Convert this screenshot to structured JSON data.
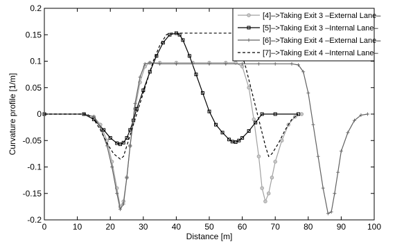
{
  "chart_data": {
    "type": "line",
    "title": "",
    "xlabel": "Distance [m]",
    "ylabel": "Curvature profile [1/m]",
    "xlim": [
      0,
      100
    ],
    "ylim": [
      -0.2,
      0.2
    ],
    "xticks": [
      0,
      10,
      20,
      30,
      40,
      50,
      60,
      70,
      80,
      90,
      100
    ],
    "yticks": [
      -0.2,
      -0.15,
      -0.1,
      -0.05,
      0,
      0.05,
      0.1,
      0.15,
      0.2
    ],
    "xtick_labels": [
      "0",
      "10",
      "20",
      "30",
      "40",
      "50",
      "60",
      "70",
      "80",
      "90",
      "100"
    ],
    "ytick_labels": [
      "-0.2",
      "-0.15",
      "-0.1",
      "-0.05",
      "0",
      "0.05",
      "0.1",
      "0.15",
      "0.2"
    ],
    "grid": false,
    "legend_position": "top-right",
    "series": [
      {
        "name": "[4]–>Taking Exit 3 –External Lane–",
        "color": "#a0a0a0",
        "line_style": "solid",
        "marker": "circle",
        "x": [
          0,
          12,
          15,
          17,
          19,
          20.5,
          22,
          23,
          24,
          25,
          26,
          27.5,
          29,
          30.5,
          32,
          35,
          40,
          45,
          50,
          55,
          58,
          60,
          62,
          63.5,
          65,
          66,
          67,
          68,
          69,
          70,
          72,
          74,
          76,
          78
        ],
        "y": [
          0,
          0,
          -0.005,
          -0.02,
          -0.05,
          -0.09,
          -0.14,
          -0.175,
          -0.165,
          -0.12,
          -0.06,
          0.01,
          0.06,
          0.09,
          0.097,
          0.097,
          0.097,
          0.097,
          0.097,
          0.097,
          0.097,
          0.09,
          0.05,
          -0.01,
          -0.08,
          -0.14,
          -0.165,
          -0.15,
          -0.12,
          -0.09,
          -0.05,
          -0.02,
          -0.005,
          0
        ]
      },
      {
        "name": "[5]–>Taking Exit 3 –Internal Lane–",
        "color": "#000000",
        "line_style": "solid",
        "marker": "square",
        "x": [
          0,
          12,
          15,
          18,
          20,
          22,
          23,
          24,
          25,
          26,
          27,
          28,
          30,
          32,
          34,
          36,
          38,
          40,
          41,
          42,
          44,
          46,
          48,
          50,
          52,
          54,
          56,
          57,
          58,
          59,
          60,
          62,
          64,
          66,
          70,
          77
        ],
        "y": [
          0,
          0,
          -0.01,
          -0.03,
          -0.045,
          -0.055,
          -0.057,
          -0.054,
          -0.045,
          -0.03,
          -0.012,
          0.01,
          0.045,
          0.08,
          0.11,
          0.135,
          0.15,
          0.153,
          0.15,
          0.14,
          0.11,
          0.075,
          0.04,
          0.005,
          -0.02,
          -0.035,
          -0.048,
          -0.052,
          -0.053,
          -0.05,
          -0.045,
          -0.032,
          -0.016,
          0,
          0,
          0
        ]
      },
      {
        "name": "[6]–>Taking Exit 4 –External Lane–",
        "color": "#606060",
        "line_style": "solid",
        "marker": "plus",
        "x": [
          0,
          12,
          15,
          17,
          19,
          20.5,
          22,
          23,
          24,
          25,
          26,
          27.5,
          29,
          30.5,
          32,
          35,
          40,
          45,
          50,
          55,
          60,
          65,
          70,
          75,
          77,
          78.5,
          80,
          81.5,
          83,
          84.5,
          86,
          87,
          88,
          89,
          90,
          92,
          94,
          96,
          98
        ],
        "y": [
          0,
          0,
          -0.005,
          -0.025,
          -0.06,
          -0.1,
          -0.15,
          -0.18,
          -0.17,
          -0.12,
          -0.06,
          0.02,
          0.07,
          0.095,
          0.097,
          0.095,
          0.095,
          0.095,
          0.095,
          0.095,
          0.095,
          0.095,
          0.095,
          0.095,
          0.093,
          0.08,
          0.04,
          -0.02,
          -0.08,
          -0.14,
          -0.188,
          -0.185,
          -0.15,
          -0.11,
          -0.07,
          -0.035,
          -0.012,
          -0.002,
          0
        ]
      },
      {
        "name": "[7]–>Taking Exit 4 –Internal Lane–",
        "color": "#000000",
        "line_style": "dashed",
        "marker": "none",
        "x": [
          0,
          13,
          15,
          17,
          19,
          21,
          23,
          24,
          25,
          27,
          29,
          31,
          33,
          35,
          37,
          38,
          40,
          45,
          50,
          55,
          57,
          59,
          61,
          63,
          65,
          67,
          68,
          69,
          71,
          73,
          75,
          77
        ],
        "y": [
          0,
          0,
          -0.01,
          -0.03,
          -0.055,
          -0.075,
          -0.085,
          -0.08,
          -0.06,
          -0.02,
          0.02,
          0.06,
          0.1,
          0.13,
          0.15,
          0.153,
          0.153,
          0.153,
          0.153,
          0.153,
          0.153,
          0.13,
          0.09,
          0.04,
          -0.01,
          -0.06,
          -0.08,
          -0.075,
          -0.055,
          -0.03,
          -0.01,
          0
        ]
      }
    ]
  }
}
